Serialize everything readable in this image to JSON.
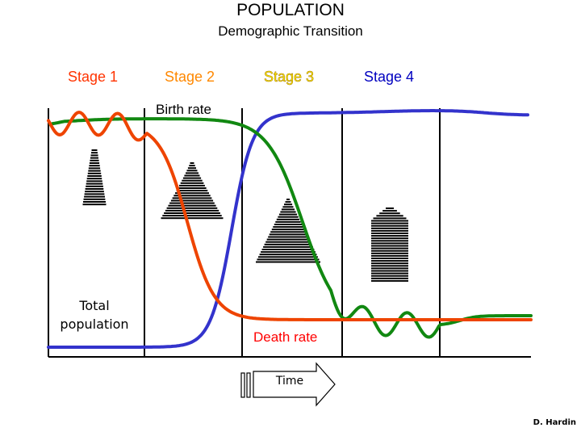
{
  "title": "POPULATION",
  "subtitle": "Demographic Transition",
  "stages": [
    {
      "label": "Stage 1",
      "color": "#ff3300"
    },
    {
      "label": "Stage 2",
      "color": "#ff8800"
    },
    {
      "label": "Stage 3",
      "color": "#ffee00"
    },
    {
      "label": "Stage 4",
      "color": "#0000c0"
    }
  ],
  "curves": {
    "birth_rate": {
      "label": "Birth rate",
      "color": "#118811"
    },
    "death_rate": {
      "label": "Death rate",
      "color": "#ee4400"
    },
    "total_population": {
      "label": "Total population",
      "color": "#3333cc"
    }
  },
  "time_arrow": {
    "label": "Time"
  },
  "credit": "D. Hardin",
  "pyramid_icons": [
    "stage-1-pyramid",
    "stage-2-pyramid",
    "stage-3-pyramid",
    "stage-4-pyramid"
  ]
}
